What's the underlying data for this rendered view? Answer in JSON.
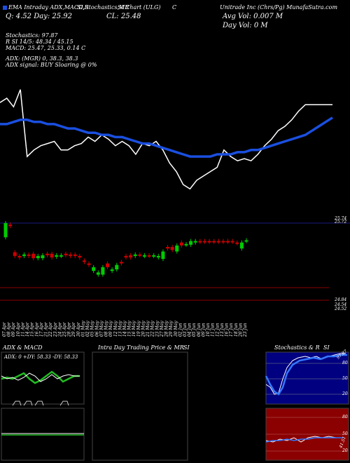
{
  "header": {
    "legend_line": "EMA Intraday ADX,MACD,R",
    "legend_line2": "SI,Stochastics,MR",
    "legend_line3": "SI Chart (ULG)",
    "legend_c": "C",
    "o_line": "Q: 4.52   Day: 25.92",
    "cl_line": "CL: 25.48",
    "company": "Unitrade Inc (Chrs/Pg) MunafaSutra.com",
    "avg_vol": "Avg Vol: 0.007 M",
    "day_vol": "Day Vol: 0   M"
  },
  "indicators": {
    "stoch": "Stochastics: 97.87",
    "rsi": "R           SI 14/5: 48.34  / 45.15",
    "macd": "MACD: 25.47, 25.33, 0.14  C",
    "adx": "ADX:                       (MGR) 0, 38.3, 38.3",
    "adx_signal": "ADX   signal:                          BUY Sloaring @ 0%"
  },
  "price_axis": {
    "top": "25.74",
    "top2": "25.72",
    "low": "24.84",
    "low2": "24.54",
    "low3": "24.52"
  },
  "x_dates": [
    "07 Apr",
    "08 Apr",
    "09 Apr",
    "10 Apr",
    "11 Apr",
    "14 Apr",
    "15 Apr",
    "16 Apr",
    "17 Apr",
    "21 Apr",
    "22 Apr",
    "23 Apr",
    "24 Apr",
    "25 Apr",
    "28 Apr",
    "29 Apr",
    "30 Apr",
    "01 May",
    "02 May",
    "05 May",
    "06 May",
    "07 May",
    "08 May",
    "09 May",
    "12 May",
    "13 May",
    "14 May",
    "15 May",
    "16 May",
    "19 May",
    "20 May",
    "21 May",
    "22 May",
    "23 May",
    "27 May",
    "28 May",
    "29 May",
    "30 May",
    "02 Jun",
    "03 Jun",
    "04 Jun",
    "05 Jun",
    "06 Jun",
    "09 Jun",
    "10 Jun",
    "11 Jun",
    "12 Jun",
    "13 Jun",
    "16 Jun",
    "17 Jun",
    "18 Jun",
    "20 Jun",
    "23 Jun"
  ],
  "panels": {
    "adx_title": "ADX  & MACD",
    "adx_values": "ADX: 0   +DY: 58.33  -DY: 58.33",
    "intra_title": "Intra  Day Trading Price  & MR",
    "intra_si": "SI",
    "stoch_title": "Stochastics & R",
    "stoch_si": "SI",
    "stoch_ticks": [
      "80",
      "50",
      "20"
    ],
    "rsi_ticks": [
      "80",
      "50",
      "20"
    ],
    "stoch_val": "97.87",
    "rsi_val": "41.51"
  },
  "colors": {
    "line": "#ffffff",
    "ema": "#1a4fe0",
    "up": "#00cc00",
    "down": "#cc0000",
    "adx_green": "#22bb22",
    "rsi_bg": "#8b0000",
    "stoch_bg": "#000080"
  },
  "chart_data": [
    {
      "type": "line",
      "title": "EMA Intraday ADX,MACD,RSI,Stochastics,MRSI Chart (ULG)",
      "series": [
        {
          "values": [
            25.6,
            25.62,
            25.58,
            25.66,
            25.35,
            25.38,
            25.4,
            25.41,
            25.42,
            25.38,
            25.38,
            25.4,
            25.41,
            25.44,
            25.42,
            25.45,
            25.43,
            25.4,
            25.42,
            25.4,
            25.36,
            25.41,
            25.4,
            25.42,
            25.38,
            25.32,
            25.28,
            25.22,
            25.2,
            25.24,
            25.26,
            25.28,
            25.3,
            25.38,
            25.35,
            25.33,
            25.34,
            25.33,
            25.36,
            25.4,
            25.43,
            25.47,
            25.49,
            25.52,
            25.56,
            25.59,
            25.59,
            25.59,
            25.59,
            25.59
          ]
        },
        {
          "values": [
            25.5,
            25.5,
            25.51,
            25.52,
            25.52,
            25.51,
            25.51,
            25.5,
            25.5,
            25.49,
            25.48,
            25.48,
            25.47,
            25.46,
            25.46,
            25.45,
            25.45,
            25.44,
            25.44,
            25.43,
            25.42,
            25.41,
            25.41,
            25.4,
            25.39,
            25.38,
            25.37,
            25.36,
            25.35,
            25.35,
            25.35,
            25.35,
            25.36,
            25.36,
            25.36,
            25.37,
            25.37,
            25.38,
            25.38,
            25.39,
            25.4,
            25.41,
            25.42,
            25.43,
            25.44,
            25.45,
            25.47,
            25.49,
            25.51,
            25.53
          ]
        }
      ]
    },
    {
      "type": "bar",
      "title": "Candles",
      "categories": [
        "07 Apr",
        "08 Apr",
        "09 Apr",
        "10 Apr",
        "11 Apr",
        "14 Apr",
        "15 Apr",
        "16 Apr",
        "17 Apr",
        "21 Apr",
        "22 Apr",
        "23 Apr",
        "24 Apr",
        "25 Apr",
        "28 Apr",
        "29 Apr",
        "30 Apr",
        "01 May",
        "02 May",
        "05 May",
        "06 May",
        "07 May",
        "08 May",
        "09 May",
        "12 May",
        "13 May",
        "14 May",
        "15 May",
        "16 May",
        "19 May",
        "20 May",
        "21 May",
        "22 May",
        "23 May",
        "27 May",
        "28 May",
        "29 May",
        "30 May",
        "02 Jun",
        "03 Jun",
        "04 Jun",
        "05 Jun",
        "06 Jun",
        "09 Jun",
        "10 Jun",
        "11 Jun",
        "12 Jun",
        "13 Jun",
        "16 Jun",
        "17 Jun",
        "18 Jun",
        "20 Jun",
        "23 Jun"
      ],
      "open": [
        25.55,
        25.72,
        25.35,
        25.3,
        25.3,
        25.32,
        25.33,
        25.27,
        25.27,
        25.33,
        25.33,
        25.29,
        25.3,
        25.33,
        25.32,
        25.32,
        25.3,
        25.24,
        25.2,
        25.1,
        25.05,
        25.05,
        25.2,
        25.1,
        25.12,
        25.22,
        25.3,
        25.31,
        25.3,
        25.32,
        25.3,
        25.31,
        25.3,
        25.28,
        25.26,
        25.42,
        25.42,
        25.36,
        25.48,
        25.45,
        25.45,
        25.48,
        25.5,
        25.5,
        25.5,
        25.5,
        25.5,
        25.5,
        25.5,
        25.5,
        25.48,
        25.4,
        25.5
      ],
      "close": [
        25.74,
        25.7,
        25.3,
        25.28,
        25.32,
        25.3,
        25.27,
        25.3,
        25.31,
        25.31,
        25.28,
        25.31,
        25.31,
        25.31,
        25.3,
        25.3,
        25.28,
        25.22,
        25.18,
        25.15,
        25.08,
        25.15,
        25.15,
        25.12,
        25.18,
        25.2,
        25.28,
        25.28,
        25.32,
        25.31,
        25.31,
        25.3,
        25.31,
        25.3,
        25.36,
        25.4,
        25.38,
        25.44,
        25.44,
        25.46,
        25.5,
        25.5,
        25.49,
        25.49,
        25.49,
        25.49,
        25.49,
        25.49,
        25.49,
        25.49,
        25.47,
        25.48,
        25.51
      ],
      "ylim": [
        24.52,
        25.74
      ]
    }
  ]
}
